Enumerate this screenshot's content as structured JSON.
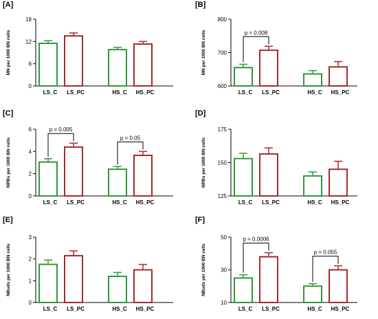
{
  "colors": {
    "control": "#2e9a35",
    "treated": "#a52a2a",
    "axis": "#000000"
  },
  "chart_data": [
    {
      "panel": "[A]",
      "type": "bar",
      "ylabel": "MN per 1000 BN cells",
      "ylim": [
        0,
        18
      ],
      "yticks": [
        0,
        6,
        12,
        18
      ],
      "categories": [
        "LS_C",
        "LS_PC",
        "HS_C",
        "HS_PC"
      ],
      "values": [
        11.5,
        13.5,
        9.8,
        11.3
      ],
      "errors": [
        0.7,
        0.8,
        0.6,
        0.7
      ],
      "annotations": []
    },
    {
      "panel": "[B]",
      "type": "bar",
      "ylabel": "MN per 1000 BN cells",
      "ylim": [
        600,
        800
      ],
      "yticks": [
        600,
        700,
        800
      ],
      "categories": [
        "LS_C",
        "LS_PC",
        "HS_C",
        "HS_PC"
      ],
      "values": [
        655,
        707,
        636,
        657
      ],
      "errors": [
        10,
        12,
        10,
        16
      ],
      "annotations": [
        {
          "text": "p = 0.008",
          "from": 0,
          "to": 1
        }
      ]
    },
    {
      "panel": "[C]",
      "type": "bar",
      "ylabel": "NPBs per 1000 BN cells",
      "ylim": [
        0,
        6
      ],
      "yticks": [
        0,
        2,
        4,
        6
      ],
      "categories": [
        "LS_C",
        "LS_PC",
        "HS_C",
        "HS_PC"
      ],
      "values": [
        3.05,
        4.4,
        2.4,
        3.65
      ],
      "errors": [
        0.3,
        0.35,
        0.25,
        0.35
      ],
      "annotations": [
        {
          "text": "p = 0.005",
          "from": 0,
          "to": 1
        },
        {
          "text": "p = 0.05",
          "from": 2,
          "to": 3
        }
      ]
    },
    {
      "panel": "[D]",
      "type": "bar",
      "ylabel": "NPBs per 1000 BN cells",
      "ylim": [
        125,
        175
      ],
      "yticks": [
        125,
        150,
        175
      ],
      "categories": [
        "LS_C",
        "LS_PC",
        "HS_C",
        "HS_PC"
      ],
      "values": [
        153,
        156.5,
        140,
        145
      ],
      "errors": [
        4,
        4.5,
        3,
        6
      ],
      "annotations": []
    },
    {
      "panel": "[E]",
      "type": "bar",
      "ylabel": "NBuds per 1000 BN cells",
      "ylim": [
        0,
        3
      ],
      "yticks": [
        0,
        1,
        2,
        3
      ],
      "categories": [
        "LS_C",
        "LS_PC",
        "HS_C",
        "HS_PC"
      ],
      "values": [
        1.75,
        2.15,
        1.2,
        1.5
      ],
      "errors": [
        0.2,
        0.22,
        0.18,
        0.25
      ],
      "annotations": []
    },
    {
      "panel": "[F]",
      "type": "bar",
      "ylabel": "NBuds per 1000 BN cells",
      "ylim": [
        10,
        50
      ],
      "yticks": [
        10,
        30,
        50
      ],
      "categories": [
        "LS_C",
        "LS_PC",
        "HS_C",
        "HS_PC"
      ],
      "values": [
        25,
        38,
        20,
        30
      ],
      "errors": [
        2,
        2.5,
        1.5,
        2.5
      ],
      "annotations": [
        {
          "text": "p = 0.0006",
          "from": 0,
          "to": 1
        },
        {
          "text": "p = 0.055",
          "from": 2,
          "to": 3
        }
      ]
    }
  ]
}
